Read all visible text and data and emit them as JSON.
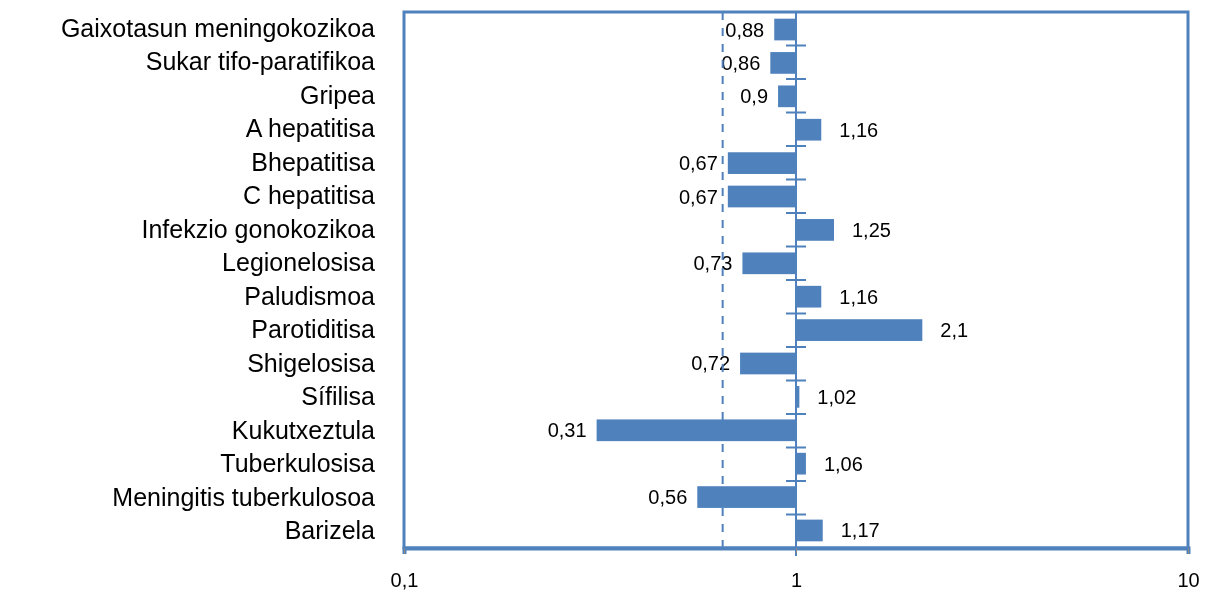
{
  "chart_data": {
    "type": "bar",
    "orientation": "horizontal",
    "log": "x",
    "categories": [
      "Gaixotasun meningokozikoa",
      "Sukar tifo-paratifikoa",
      "Gripea",
      "A hepatitisa ",
      "Bhepatitisa ",
      "C hepatitisa ",
      "Infekzio gonokozikoa",
      "Legionelosisa",
      "Paludismoa",
      "Parotiditisa",
      "Shigelosisa",
      "Sífilisa",
      "Kukutxeztula",
      "Tuberkulosisa",
      "Meningitis tuberkulosoa",
      "Barizela"
    ],
    "base": [
      1,
      1,
      1,
      1,
      1,
      1,
      1,
      1,
      1,
      1,
      1,
      1,
      1,
      1,
      1,
      1
    ],
    "values": [
      -0.12,
      -0.14,
      -0.1,
      0.16,
      -0.33,
      -0.33,
      0.25,
      -0.27,
      0.16,
      1.1,
      -0.28,
      0.02,
      -0.69,
      0.06,
      -0.44,
      0.17
    ],
    "value_labels": [
      "0,88",
      "0,86",
      "0,9",
      "1,16",
      "0,67",
      "0,67",
      "1,25",
      "0,73",
      "1,16",
      "2,1",
      "0,72",
      "1,02",
      "0,31",
      "1,06",
      "0,56",
      "1,17"
    ],
    "color": "#4f81bd",
    "xlim": [
      0.1,
      10
    ],
    "xticks": [
      {
        "value": 0.1,
        "label": "0,1"
      },
      1,
      10
    ],
    "ref_lines": [
      {
        "axis": "x",
        "value": 0.65,
        "color": "#4f81bd",
        "line_style": "dashed"
      },
      {
        "axis": "x",
        "value": 1,
        "color": "#4f81bd",
        "line_style": "solid"
      }
    ],
    "grid": false
  }
}
